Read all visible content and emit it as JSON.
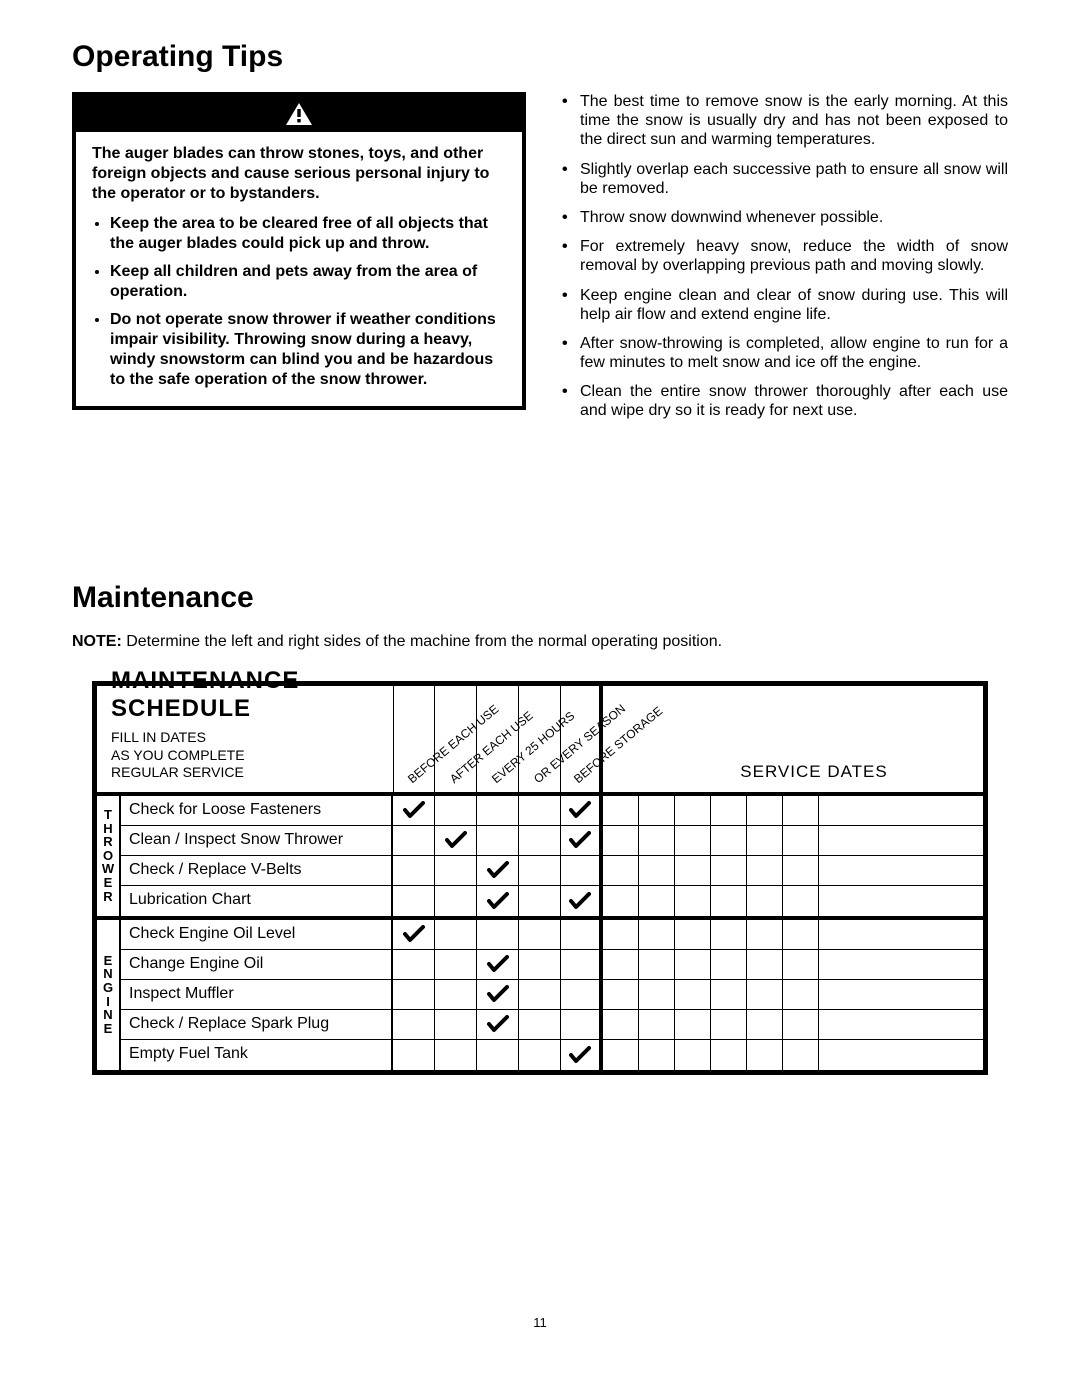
{
  "headings": {
    "operating_tips": "Operating Tips",
    "maintenance": "Maintenance"
  },
  "warning": {
    "intro": "The auger blades can throw stones, toys, and other foreign objects and cause serious personal injury to the operator or to bystanders.",
    "bullets": [
      "Keep the area to be cleared free of all objects that the auger blades could pick up and throw.",
      "Keep all children and pets away from the area of operation.",
      "Do not operate snow thrower if weather conditions impair visibility. Throwing snow during a heavy, windy snowstorm can blind you and be hazardous to the safe operation of the snow thrower."
    ]
  },
  "tips": [
    "The best time to remove snow is the early morning. At this time the snow is usually dry and has not been exposed to the direct sun and warming temperatures.",
    "Slightly overlap each successive path to ensure all snow will be removed.",
    "Throw snow downwind whenever possible.",
    "For extremely heavy snow, reduce the width of snow removal by overlapping previous path and moving slowly.",
    "Keep engine clean and clear of snow during use. This will help air flow and extend engine life.",
    "After snow-throwing is completed, allow engine to run for a few minutes to melt snow and ice off the engine.",
    "Clean the entire snow thrower thoroughly after each use and wipe dry so it is ready for next use."
  ],
  "note_label": "NOTE:",
  "note_text": " Determine the left and right sides of the machine from the normal operating position.",
  "schedule": {
    "title": "MAINTENANCE SCHEDULE",
    "sub1": "FILL IN DATES",
    "sub2": "AS YOU COMPLETE",
    "sub3": "REGULAR SERVICE",
    "service_dates_label": "SERVICE DATES",
    "columns": [
      "BEFORE EACH USE",
      "AFTER EACH USE",
      "EVERY 25 HOURS",
      "OR EVERY SEASON",
      "BEFORE STORAGE"
    ],
    "service_slot_count": 7,
    "groups": [
      {
        "label": "THROWER",
        "rows": [
          {
            "task": "Check for Loose Fasteners",
            "checks": [
              true,
              false,
              false,
              false,
              true
            ]
          },
          {
            "task": "Clean / Inspect Snow Thrower",
            "checks": [
              false,
              true,
              false,
              false,
              true
            ]
          },
          {
            "task": "Check / Replace V-Belts",
            "checks": [
              false,
              false,
              true,
              false,
              false
            ]
          },
          {
            "task": "Lubrication Chart",
            "checks": [
              false,
              false,
              true,
              false,
              true
            ]
          }
        ]
      },
      {
        "label": "ENGINE",
        "rows": [
          {
            "task": "Check Engine Oil Level",
            "checks": [
              true,
              false,
              false,
              false,
              false
            ]
          },
          {
            "task": "Change Engine Oil",
            "checks": [
              false,
              false,
              true,
              false,
              false
            ]
          },
          {
            "task": "Inspect Muffler",
            "checks": [
              false,
              false,
              true,
              false,
              false
            ]
          },
          {
            "task": "Check / Replace Spark Plug",
            "checks": [
              false,
              false,
              true,
              false,
              false
            ]
          },
          {
            "task": "Empty Fuel Tank",
            "checks": [
              false,
              false,
              false,
              false,
              true
            ]
          }
        ]
      }
    ]
  },
  "page_number": "11",
  "colors": {
    "text": "#000000",
    "background": "#ffffff",
    "warning_bg": "#000000",
    "border": "#000000"
  }
}
